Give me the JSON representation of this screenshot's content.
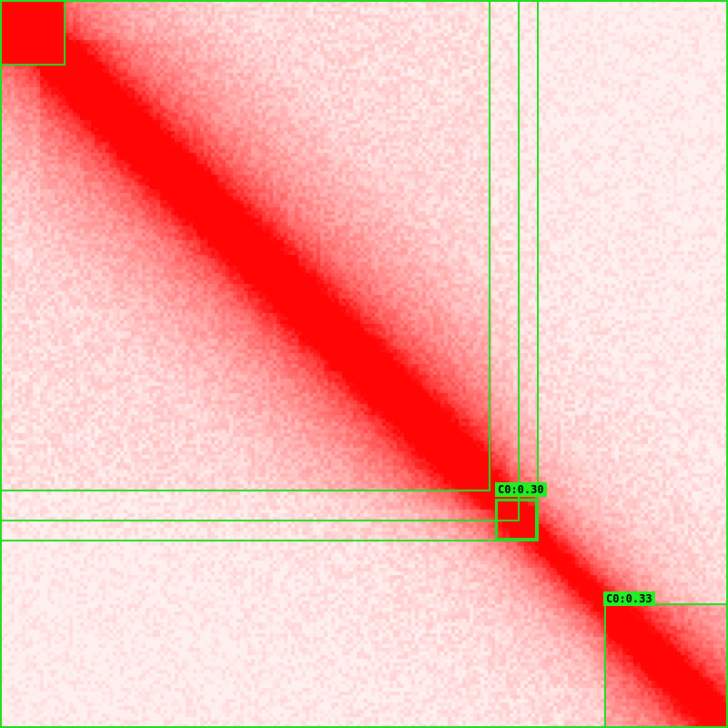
{
  "image": {
    "description_colors": {
      "background": "#fff0f0",
      "signal": "#ff0000",
      "box_stroke": "#22dd22",
      "label_bg": "#22ee22",
      "label_text": "#000000"
    }
  },
  "labels": [
    {
      "text": "C0:0.30"
    },
    {
      "text": "C0:0.33"
    }
  ]
}
